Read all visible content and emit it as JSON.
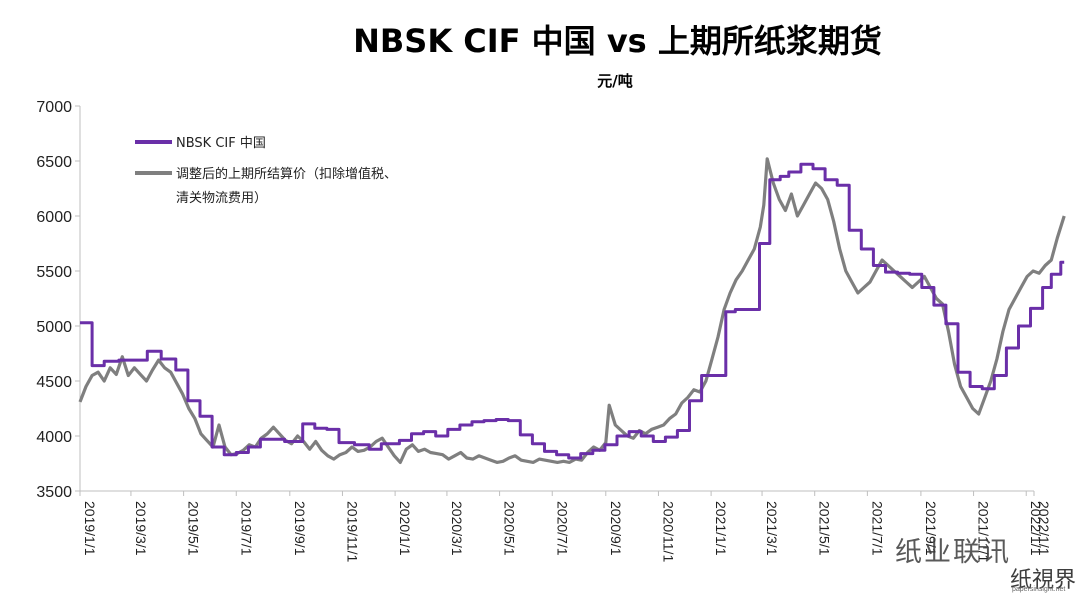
{
  "chart_data": {
    "type": "line",
    "title": "NBSK CIF 中国 vs 上期所纸浆期货",
    "ylabel": "元/吨",
    "ylim": [
      3500,
      7000
    ],
    "yticks": [
      3500,
      4000,
      4500,
      5000,
      5500,
      6000,
      6500,
      7000
    ],
    "xlim": [
      "2019-01-01",
      "2022-01-10"
    ],
    "xtick_labels": [
      "2019/1/1",
      "2019/3/1",
      "2019/5/1",
      "2019/7/1",
      "2019/9/1",
      "2019/11/1",
      "2020/1/1",
      "2020/3/1",
      "2020/5/1",
      "2020/7/1",
      "2020/9/1",
      "2020/11/1",
      "2021/1/1",
      "2021/3/1",
      "2021/5/1",
      "2021/7/1",
      "2021/9/1",
      "2021/11/1",
      "2022/1/1",
      "2022/1/1"
    ],
    "grid": false,
    "legend_position": "top-left",
    "series": [
      {
        "name": "NBSK CIF 中国",
        "color": "#6a2fa8",
        "step": true,
        "points": [
          [
            "2019-01-01",
            5030
          ],
          [
            "2019-01-15",
            4640
          ],
          [
            "2019-01-29",
            4680
          ],
          [
            "2019-02-15",
            4690
          ],
          [
            "2019-03-20",
            4770
          ],
          [
            "2019-04-05",
            4700
          ],
          [
            "2019-04-22",
            4600
          ],
          [
            "2019-05-06",
            4320
          ],
          [
            "2019-05-20",
            4180
          ],
          [
            "2019-06-03",
            3900
          ],
          [
            "2019-06-17",
            3830
          ],
          [
            "2019-07-01",
            3850
          ],
          [
            "2019-07-15",
            3900
          ],
          [
            "2019-07-29",
            3970
          ],
          [
            "2019-08-26",
            3950
          ],
          [
            "2019-09-16",
            4110
          ],
          [
            "2019-09-30",
            4070
          ],
          [
            "2019-10-14",
            4060
          ],
          [
            "2019-10-28",
            3940
          ],
          [
            "2019-11-15",
            3920
          ],
          [
            "2019-12-02",
            3880
          ],
          [
            "2019-12-16",
            3930
          ],
          [
            "2020-01-06",
            3960
          ],
          [
            "2020-01-20",
            4020
          ],
          [
            "2020-02-03",
            4040
          ],
          [
            "2020-02-17",
            4000
          ],
          [
            "2020-03-02",
            4060
          ],
          [
            "2020-03-16",
            4100
          ],
          [
            "2020-03-30",
            4130
          ],
          [
            "2020-04-13",
            4140
          ],
          [
            "2020-04-27",
            4150
          ],
          [
            "2020-05-11",
            4140
          ],
          [
            "2020-05-25",
            4010
          ],
          [
            "2020-06-08",
            3930
          ],
          [
            "2020-06-22",
            3860
          ],
          [
            "2020-07-06",
            3830
          ],
          [
            "2020-07-20",
            3800
          ],
          [
            "2020-08-03",
            3840
          ],
          [
            "2020-08-17",
            3870
          ],
          [
            "2020-08-31",
            3920
          ],
          [
            "2020-09-14",
            4000
          ],
          [
            "2020-09-28",
            4040
          ],
          [
            "2020-10-12",
            4000
          ],
          [
            "2020-10-26",
            3950
          ],
          [
            "2020-11-09",
            3990
          ],
          [
            "2020-11-23",
            4050
          ],
          [
            "2020-12-07",
            4320
          ],
          [
            "2020-12-21",
            4550
          ],
          [
            "2021-01-04",
            4550
          ],
          [
            "2021-01-18",
            5130
          ],
          [
            "2021-01-29",
            5150
          ],
          [
            "2021-02-15",
            5150
          ],
          [
            "2021-02-26",
            5750
          ],
          [
            "2021-03-10",
            6330
          ],
          [
            "2021-03-22",
            6360
          ],
          [
            "2021-04-01",
            6400
          ],
          [
            "2021-04-15",
            6470
          ],
          [
            "2021-04-29",
            6430
          ],
          [
            "2021-05-13",
            6330
          ],
          [
            "2021-05-27",
            6280
          ],
          [
            "2021-06-10",
            5870
          ],
          [
            "2021-06-24",
            5700
          ],
          [
            "2021-07-08",
            5550
          ],
          [
            "2021-07-22",
            5490
          ],
          [
            "2021-08-05",
            5480
          ],
          [
            "2021-08-19",
            5470
          ],
          [
            "2021-09-02",
            5350
          ],
          [
            "2021-09-16",
            5190
          ],
          [
            "2021-09-30",
            5020
          ],
          [
            "2021-10-14",
            4580
          ],
          [
            "2021-10-28",
            4450
          ],
          [
            "2021-11-11",
            4430
          ],
          [
            "2021-11-25",
            4550
          ],
          [
            "2021-12-09",
            4800
          ],
          [
            "2021-12-23",
            5000
          ],
          [
            "2022-01-06",
            5160
          ],
          [
            "2022-01-20",
            5350
          ],
          [
            "2022-01-30",
            5470
          ],
          [
            "2022-02-10",
            5580
          ],
          [
            "2022-02-14",
            5580
          ]
        ]
      },
      {
        "name": "调整后的上期所结算价（扣除增值税、清关物流费用）",
        "color": "#7f7f7f",
        "step": false,
        "points": [
          [
            "2019-01-01",
            4310
          ],
          [
            "2019-01-08",
            4450
          ],
          [
            "2019-01-15",
            4550
          ],
          [
            "2019-01-22",
            4580
          ],
          [
            "2019-01-29",
            4500
          ],
          [
            "2019-02-05",
            4620
          ],
          [
            "2019-02-12",
            4560
          ],
          [
            "2019-02-19",
            4720
          ],
          [
            "2019-02-26",
            4550
          ],
          [
            "2019-03-05",
            4620
          ],
          [
            "2019-03-12",
            4560
          ],
          [
            "2019-03-19",
            4500
          ],
          [
            "2019-03-26",
            4600
          ],
          [
            "2019-04-02",
            4690
          ],
          [
            "2019-04-09",
            4620
          ],
          [
            "2019-04-16",
            4580
          ],
          [
            "2019-04-23",
            4480
          ],
          [
            "2019-04-30",
            4380
          ],
          [
            "2019-05-07",
            4250
          ],
          [
            "2019-05-14",
            4160
          ],
          [
            "2019-05-21",
            4020
          ],
          [
            "2019-05-28",
            3960
          ],
          [
            "2019-06-04",
            3900
          ],
          [
            "2019-06-11",
            4100
          ],
          [
            "2019-06-18",
            3900
          ],
          [
            "2019-06-25",
            3830
          ],
          [
            "2019-07-02",
            3840
          ],
          [
            "2019-07-09",
            3870
          ],
          [
            "2019-07-16",
            3920
          ],
          [
            "2019-07-23",
            3900
          ],
          [
            "2019-07-30",
            3980
          ],
          [
            "2019-08-06",
            4020
          ],
          [
            "2019-08-13",
            4080
          ],
          [
            "2019-08-20",
            4020
          ],
          [
            "2019-08-27",
            3960
          ],
          [
            "2019-09-03",
            3930
          ],
          [
            "2019-09-10",
            4000
          ],
          [
            "2019-09-17",
            3950
          ],
          [
            "2019-09-24",
            3880
          ],
          [
            "2019-10-01",
            3950
          ],
          [
            "2019-10-08",
            3870
          ],
          [
            "2019-10-15",
            3820
          ],
          [
            "2019-10-22",
            3790
          ],
          [
            "2019-10-29",
            3830
          ],
          [
            "2019-11-05",
            3850
          ],
          [
            "2019-11-12",
            3900
          ],
          [
            "2019-11-19",
            3860
          ],
          [
            "2019-11-26",
            3870
          ],
          [
            "2019-12-03",
            3900
          ],
          [
            "2019-12-10",
            3950
          ],
          [
            "2019-12-17",
            3980
          ],
          [
            "2019-12-24",
            3900
          ],
          [
            "2019-12-31",
            3820
          ],
          [
            "2020-01-07",
            3760
          ],
          [
            "2020-01-14",
            3880
          ],
          [
            "2020-01-21",
            3920
          ],
          [
            "2020-01-28",
            3860
          ],
          [
            "2020-02-04",
            3880
          ],
          [
            "2020-02-11",
            3850
          ],
          [
            "2020-02-18",
            3840
          ],
          [
            "2020-02-25",
            3830
          ],
          [
            "2020-03-03",
            3790
          ],
          [
            "2020-03-10",
            3820
          ],
          [
            "2020-03-17",
            3850
          ],
          [
            "2020-03-24",
            3800
          ],
          [
            "2020-03-31",
            3790
          ],
          [
            "2020-04-07",
            3820
          ],
          [
            "2020-04-14",
            3800
          ],
          [
            "2020-04-21",
            3780
          ],
          [
            "2020-04-28",
            3760
          ],
          [
            "2020-05-05",
            3770
          ],
          [
            "2020-05-12",
            3800
          ],
          [
            "2020-05-19",
            3820
          ],
          [
            "2020-05-26",
            3780
          ],
          [
            "2020-06-02",
            3770
          ],
          [
            "2020-06-09",
            3760
          ],
          [
            "2020-06-16",
            3790
          ],
          [
            "2020-06-23",
            3780
          ],
          [
            "2020-06-30",
            3770
          ],
          [
            "2020-07-07",
            3760
          ],
          [
            "2020-07-14",
            3770
          ],
          [
            "2020-07-21",
            3760
          ],
          [
            "2020-07-28",
            3790
          ],
          [
            "2020-08-04",
            3780
          ],
          [
            "2020-08-11",
            3850
          ],
          [
            "2020-08-18",
            3900
          ],
          [
            "2020-08-25",
            3870
          ],
          [
            "2020-09-01",
            3940
          ],
          [
            "2020-09-05",
            4280
          ],
          [
            "2020-09-12",
            4100
          ],
          [
            "2020-09-19",
            4050
          ],
          [
            "2020-09-26",
            4000
          ],
          [
            "2020-10-03",
            3980
          ],
          [
            "2020-10-10",
            4050
          ],
          [
            "2020-10-17",
            4020
          ],
          [
            "2020-10-24",
            4060
          ],
          [
            "2020-10-31",
            4080
          ],
          [
            "2020-11-07",
            4100
          ],
          [
            "2020-11-14",
            4160
          ],
          [
            "2020-11-21",
            4200
          ],
          [
            "2020-11-28",
            4300
          ],
          [
            "2020-12-05",
            4350
          ],
          [
            "2020-12-12",
            4420
          ],
          [
            "2020-12-19",
            4400
          ],
          [
            "2020-12-26",
            4500
          ],
          [
            "2021-01-02",
            4700
          ],
          [
            "2021-01-09",
            4900
          ],
          [
            "2021-01-16",
            5150
          ],
          [
            "2021-01-23",
            5300
          ],
          [
            "2021-01-30",
            5420
          ],
          [
            "2021-02-06",
            5500
          ],
          [
            "2021-02-13",
            5600
          ],
          [
            "2021-02-20",
            5700
          ],
          [
            "2021-02-27",
            5900
          ],
          [
            "2021-03-03",
            6100
          ],
          [
            "2021-03-07",
            6520
          ],
          [
            "2021-03-14",
            6300
          ],
          [
            "2021-03-21",
            6150
          ],
          [
            "2021-03-28",
            6050
          ],
          [
            "2021-04-04",
            6200
          ],
          [
            "2021-04-11",
            6000
          ],
          [
            "2021-04-18",
            6100
          ],
          [
            "2021-04-25",
            6200
          ],
          [
            "2021-05-02",
            6300
          ],
          [
            "2021-05-09",
            6250
          ],
          [
            "2021-05-16",
            6150
          ],
          [
            "2021-05-23",
            5950
          ],
          [
            "2021-05-30",
            5700
          ],
          [
            "2021-06-06",
            5500
          ],
          [
            "2021-06-13",
            5400
          ],
          [
            "2021-06-20",
            5300
          ],
          [
            "2021-06-27",
            5350
          ],
          [
            "2021-07-04",
            5400
          ],
          [
            "2021-07-11",
            5500
          ],
          [
            "2021-07-18",
            5600
          ],
          [
            "2021-07-25",
            5550
          ],
          [
            "2021-08-01",
            5500
          ],
          [
            "2021-08-08",
            5450
          ],
          [
            "2021-08-15",
            5400
          ],
          [
            "2021-08-22",
            5350
          ],
          [
            "2021-08-29",
            5400
          ],
          [
            "2021-09-05",
            5450
          ],
          [
            "2021-09-12",
            5350
          ],
          [
            "2021-09-19",
            5250
          ],
          [
            "2021-09-26",
            5200
          ],
          [
            "2021-10-03",
            4950
          ],
          [
            "2021-10-10",
            4650
          ],
          [
            "2021-10-17",
            4450
          ],
          [
            "2021-10-24",
            4350
          ],
          [
            "2021-10-31",
            4250
          ],
          [
            "2021-11-07",
            4200
          ],
          [
            "2021-11-14",
            4350
          ],
          [
            "2021-11-21",
            4500
          ],
          [
            "2021-11-28",
            4700
          ],
          [
            "2021-12-05",
            4950
          ],
          [
            "2021-12-12",
            5150
          ],
          [
            "2021-12-19",
            5250
          ],
          [
            "2021-12-26",
            5350
          ],
          [
            "2022-01-02",
            5450
          ],
          [
            "2022-01-09",
            5500
          ],
          [
            "2022-01-16",
            5480
          ],
          [
            "2022-01-23",
            5550
          ],
          [
            "2022-01-30",
            5600
          ],
          [
            "2022-02-06",
            5800
          ],
          [
            "2022-02-14",
            6000
          ]
        ]
      }
    ]
  },
  "legend": {
    "label_1": "NBSK CIF 中国",
    "label_2_line1": "调整后的上期所结算价（扣除增值税、",
    "label_2_line2": "清关物流费用）"
  },
  "watermark": {
    "line1": "纸业联讯",
    "line2": "纸視界",
    "url": "papersinsight.net"
  }
}
